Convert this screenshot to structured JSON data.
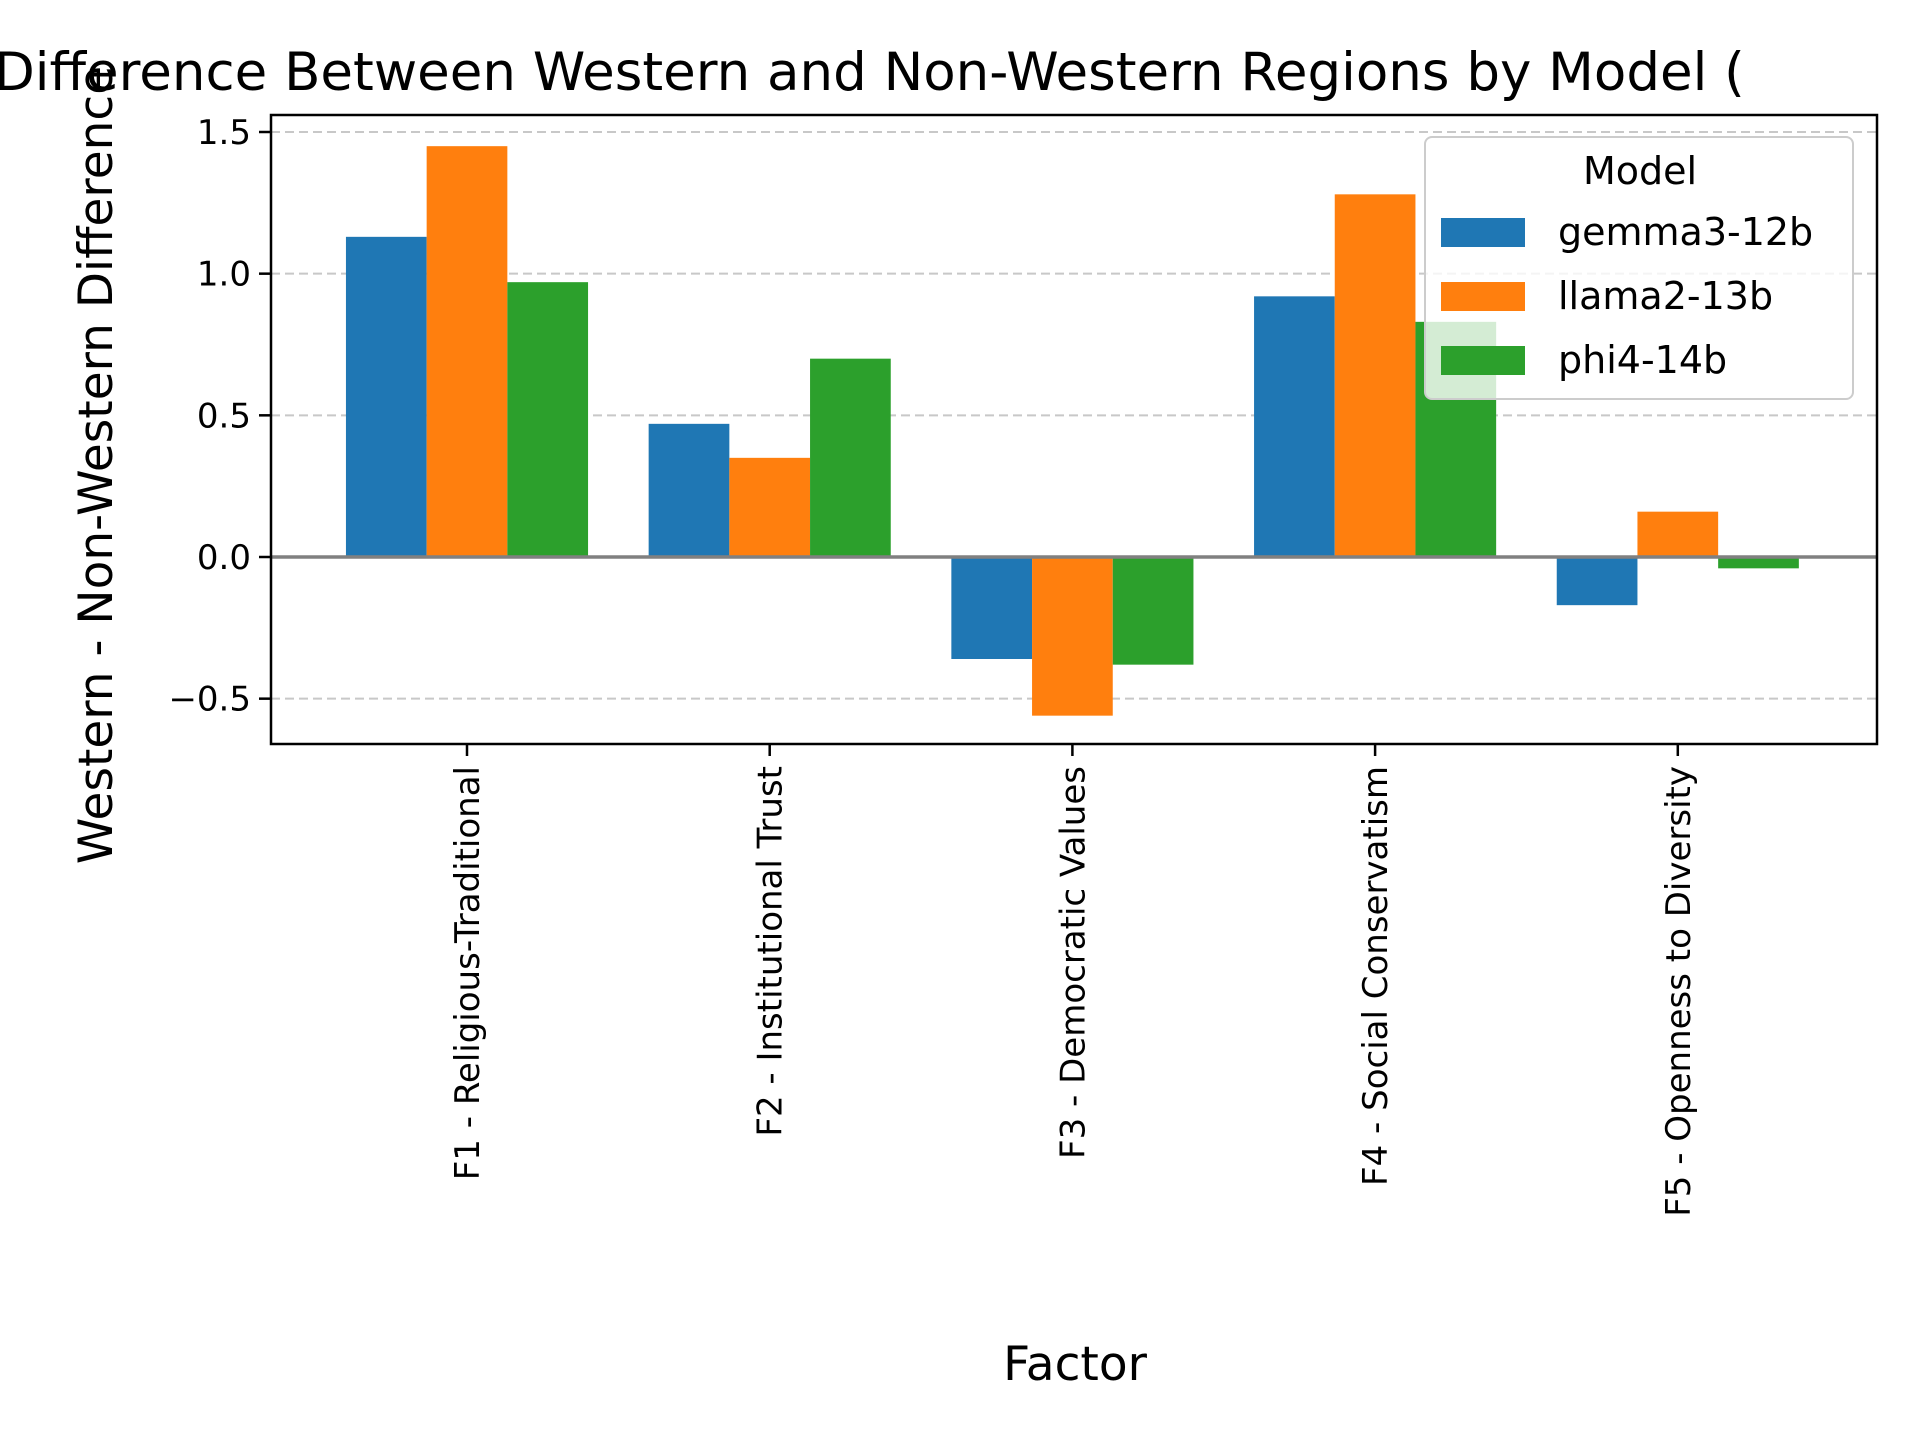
{
  "chart_data": {
    "type": "bar",
    "title": "Difference Between Western and Non-Western Regions by Model (",
    "xlabel": "Factor",
    "ylabel": "Western - Non-Western Difference",
    "categories": [
      "F1 - Religious-Traditional",
      "F2 - Institutional Trust",
      "F3 - Democratic Values",
      "F4 - Social Conservatism",
      "F5 - Openness to Diversity"
    ],
    "series": [
      {
        "name": "gemma3-12b",
        "color": "#1f77b4",
        "values": [
          1.13,
          0.47,
          -0.36,
          0.92,
          -0.17
        ]
      },
      {
        "name": "llama2-13b",
        "color": "#ff7f0e",
        "values": [
          1.45,
          0.35,
          -0.56,
          1.28,
          0.16
        ]
      },
      {
        "name": "phi4-14b",
        "color": "#2ca02c",
        "values": [
          0.97,
          0.7,
          -0.38,
          0.83,
          -0.04
        ]
      }
    ],
    "ylim": [
      -0.66,
      1.56
    ],
    "yticks": [
      -0.5,
      0.0,
      0.5,
      1.0,
      1.5
    ],
    "ytick_labels": [
      "−0.5",
      "0.0",
      "0.5",
      "1.0",
      "1.5"
    ],
    "grid": "horizontal-dashed",
    "zero_line": true,
    "legend": {
      "title": "Model",
      "placement": "top-right"
    }
  }
}
